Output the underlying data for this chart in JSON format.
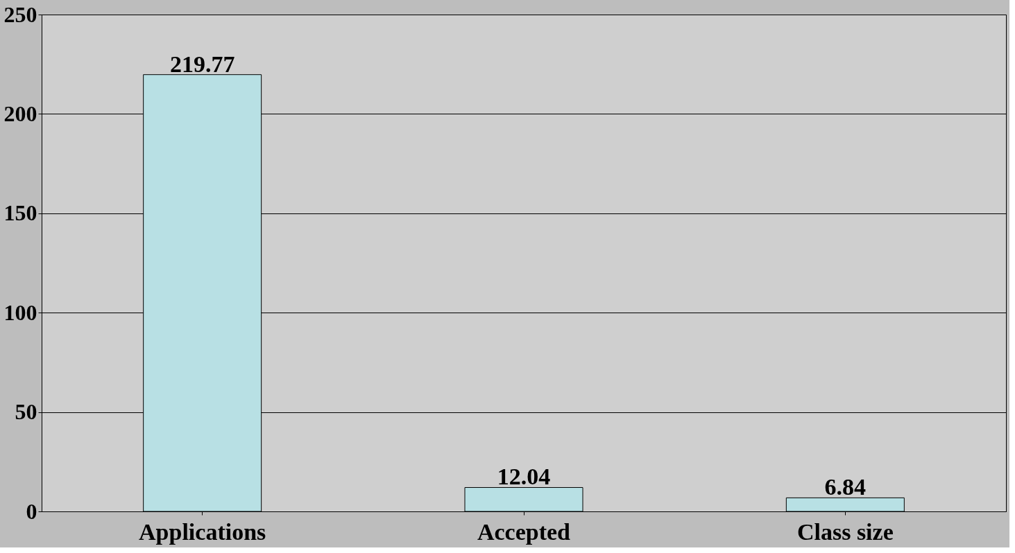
{
  "chart_data": {
    "type": "bar",
    "categories": [
      "Applications",
      "Accepted",
      "Class size"
    ],
    "values": [
      219.77,
      12.04,
      6.84
    ],
    "color": "#b8e0e4",
    "ylim": [
      0,
      250
    ],
    "yticks": [
      0,
      50,
      100,
      150,
      200,
      250
    ],
    "grid": "y",
    "data_labels": true
  }
}
